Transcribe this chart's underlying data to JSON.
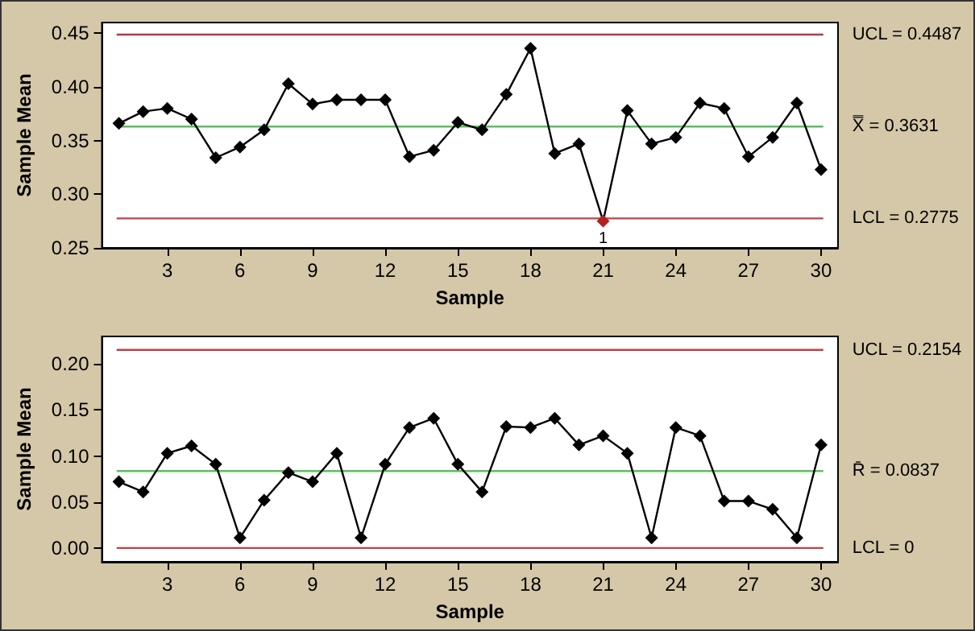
{
  "chart_data": [
    {
      "type": "line",
      "xlabel": "Sample",
      "ylabel": "Sample Mean",
      "marker": "diamond",
      "line_style": "solid",
      "grid": false,
      "x": [
        1,
        2,
        3,
        4,
        5,
        6,
        7,
        8,
        9,
        10,
        11,
        12,
        13,
        14,
        15,
        16,
        17,
        18,
        19,
        20,
        21,
        22,
        23,
        24,
        25,
        26,
        27,
        28,
        29,
        30
      ],
      "series": [
        {
          "color": "#000000",
          "colors": [
            "#000000",
            "#000000",
            "#000000",
            "#000000",
            "#000000",
            "#000000",
            "#000000",
            "#000000",
            "#000000",
            "#000000",
            "#000000",
            "#000000",
            "#000000",
            "#000000",
            "#000000",
            "#000000",
            "#000000",
            "#000000",
            "#000000",
            "#000000",
            "#b22222",
            "#000000",
            "#000000",
            "#000000",
            "#000000",
            "#000000",
            "#000000",
            "#000000",
            "#000000",
            "#000000"
          ],
          "values": [
            0.366,
            0.377,
            0.38,
            0.37,
            0.334,
            0.344,
            0.36,
            0.403,
            0.384,
            0.388,
            0.388,
            0.388,
            0.335,
            0.341,
            0.367,
            0.36,
            0.393,
            0.436,
            0.338,
            0.347,
            0.275,
            0.378,
            0.347,
            0.353,
            0.385,
            0.38,
            0.335,
            0.353,
            0.385,
            0.323
          ]
        }
      ],
      "xlim": [
        0.3,
        30.7
      ],
      "xticks": [
        3,
        6,
        9,
        12,
        15,
        18,
        21,
        24,
        27,
        30
      ],
      "ylim": [
        0.25,
        0.46
      ],
      "yticks": [
        {
          "value": 0.25,
          "label": "0.25"
        },
        {
          "value": 0.3,
          "label": "0.30"
        },
        {
          "value": 0.35,
          "label": "0.35"
        },
        {
          "value": 0.4,
          "label": "0.40"
        },
        {
          "value": 0.45,
          "label": "0.45"
        }
      ],
      "ref_lines": [
        {
          "axis": "y",
          "value": 0.4487,
          "label": "UCL = 0.4487",
          "color": "#b03a48"
        },
        {
          "axis": "y",
          "value": 0.3631,
          "label": "X̿ = 0.3631",
          "color": "#5cbf5c"
        },
        {
          "axis": "y",
          "value": 0.2775,
          "label": "LCL = 0.2775",
          "color": "#c0404a"
        }
      ],
      "annotations": [
        {
          "text": "1",
          "x": 21,
          "y": 0.275
        }
      ]
    },
    {
      "type": "line",
      "xlabel": "Sample",
      "ylabel": "Sample Mean",
      "marker": "diamond",
      "line_style": "solid",
      "grid": false,
      "x": [
        1,
        2,
        3,
        4,
        5,
        6,
        7,
        8,
        9,
        10,
        11,
        12,
        13,
        14,
        15,
        16,
        17,
        18,
        19,
        20,
        21,
        22,
        23,
        24,
        25,
        26,
        27,
        28,
        29,
        30
      ],
      "series": [
        {
          "color": "#000000",
          "values": [
            0.072,
            0.061,
            0.103,
            0.111,
            0.091,
            0.011,
            0.052,
            0.082,
            0.072,
            0.103,
            0.011,
            0.091,
            0.131,
            0.141,
            0.091,
            0.061,
            0.132,
            0.131,
            0.141,
            0.112,
            0.122,
            0.103,
            0.011,
            0.131,
            0.122,
            0.051,
            0.051,
            0.042,
            0.011,
            0.112
          ]
        }
      ],
      "xlim": [
        0.3,
        30.7
      ],
      "xticks": [
        3,
        6,
        9,
        12,
        15,
        18,
        21,
        24,
        27,
        30
      ],
      "ylim": [
        -0.015,
        0.23
      ],
      "yticks": [
        {
          "value": 0,
          "label": "0.00"
        },
        {
          "value": 0.05,
          "label": "0.05"
        },
        {
          "value": 0.1,
          "label": "0.10"
        },
        {
          "value": 0.15,
          "label": "0.15"
        },
        {
          "value": 0.2,
          "label": "0.20"
        }
      ],
      "ref_lines": [
        {
          "axis": "y",
          "value": 0.2154,
          "label": "UCL = 0.2154",
          "color": "#c0404a"
        },
        {
          "axis": "y",
          "value": 0.0837,
          "label": "R̄ = 0.0837",
          "color": "#5cbf5c"
        },
        {
          "axis": "y",
          "value": 0,
          "label": "LCL = 0",
          "color": "#c0404a"
        }
      ]
    }
  ]
}
